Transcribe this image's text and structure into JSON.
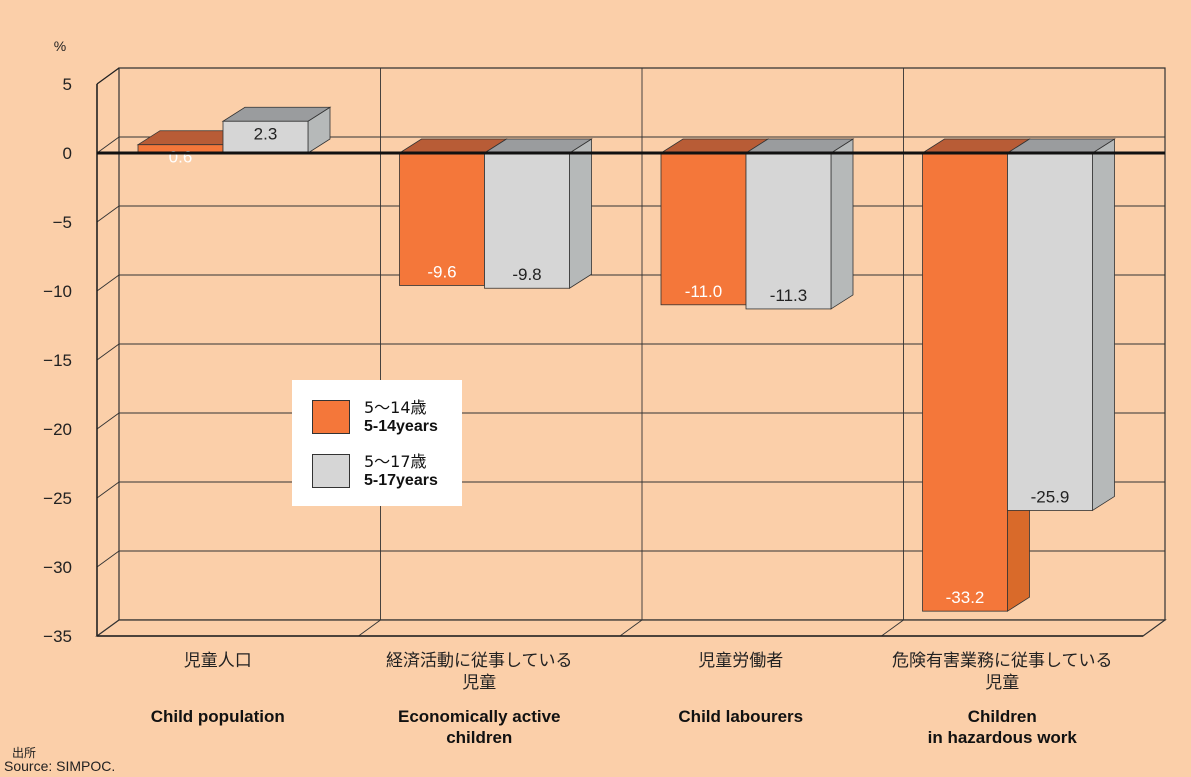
{
  "chart_data": {
    "type": "bar",
    "ylabel": "%",
    "ylim": [
      -35,
      5
    ],
    "yticks": [
      5,
      0,
      -5,
      -10,
      -15,
      -20,
      -25,
      -30,
      -35
    ],
    "grid": true,
    "legend_position": "center-left",
    "categories": [
      {
        "jp": "児童人口",
        "en": "Child population"
      },
      {
        "jp": "経済活動に従事している\n児童",
        "en": "Economically active\nchildren"
      },
      {
        "jp": "児童労働者",
        "en": "Child labourers"
      },
      {
        "jp": "危険有害業務に従事している\n児童",
        "en": "Children\nin hazardous work"
      }
    ],
    "series": [
      {
        "name_jp": "5～14歳",
        "name_en": "5-14years",
        "color": "#f4773a",
        "values": [
          0.6,
          -9.6,
          -11.0,
          -33.2
        ],
        "labels": [
          "0.6",
          "-9.6",
          "-11.0",
          "-33.2"
        ]
      },
      {
        "name_jp": "5～17歳",
        "name_en": "5-17years",
        "color": "#d6d6d6",
        "values": [
          2.3,
          -9.8,
          -11.3,
          -25.9
        ],
        "labels": [
          "2.3",
          "-9.8",
          "-11.3",
          "-25.9"
        ]
      }
    ]
  },
  "source": {
    "jp": "出所",
    "en": "Source: SIMPOC."
  }
}
